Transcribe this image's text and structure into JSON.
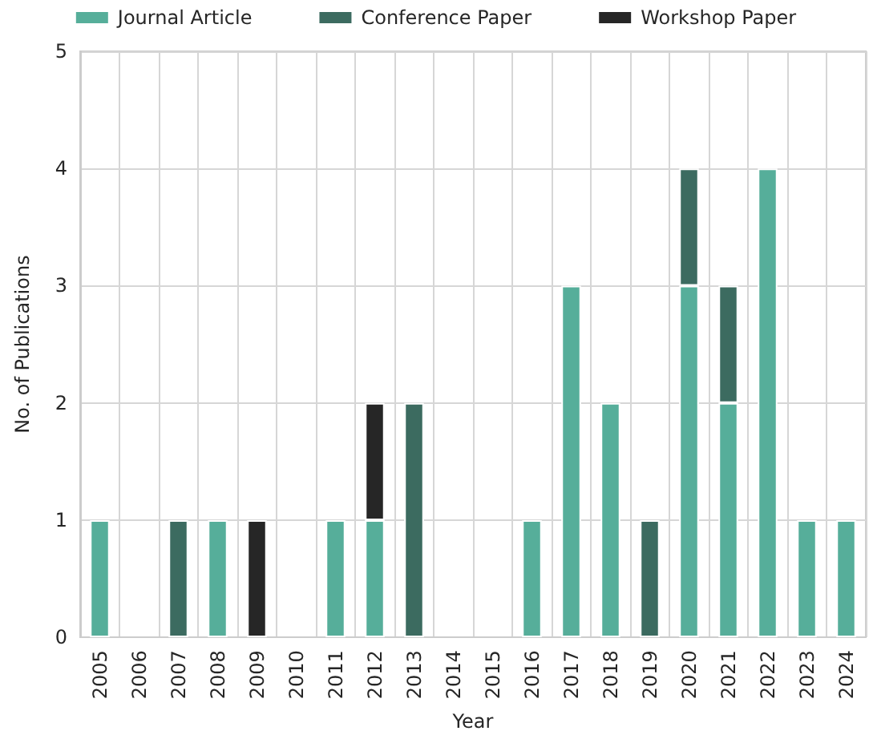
{
  "chart_data": {
    "type": "bar",
    "xlabel": "Year",
    "ylabel": "No. of Publications",
    "categories": [
      "2005",
      "2006",
      "2007",
      "2008",
      "2009",
      "2010",
      "2011",
      "2012",
      "2013",
      "2014",
      "2015",
      "2016",
      "2017",
      "2018",
      "2019",
      "2020",
      "2021",
      "2022",
      "2023",
      "2024"
    ],
    "series": [
      {
        "name": "Journal Article",
        "color": "#56ae9a",
        "values": [
          1,
          0,
          0,
          1,
          0,
          0,
          1,
          1,
          0,
          0,
          0,
          1,
          3,
          2,
          0,
          3,
          2,
          4,
          1,
          1
        ]
      },
      {
        "name": "Conference Paper",
        "color": "#3c6b60",
        "values": [
          0,
          0,
          1,
          0,
          0,
          0,
          0,
          0,
          2,
          0,
          0,
          0,
          0,
          0,
          1,
          1,
          1,
          0,
          0,
          0
        ]
      },
      {
        "name": "Workshop Paper",
        "color": "#262626",
        "values": [
          0,
          0,
          0,
          0,
          1,
          0,
          0,
          1,
          0,
          0,
          0,
          0,
          0,
          0,
          0,
          0,
          0,
          0,
          0,
          0
        ]
      }
    ],
    "stacked": true,
    "ylim": [
      0,
      5
    ],
    "yticks": [
      0,
      1,
      2,
      3,
      4,
      5
    ],
    "grid": true,
    "legend": "top"
  }
}
